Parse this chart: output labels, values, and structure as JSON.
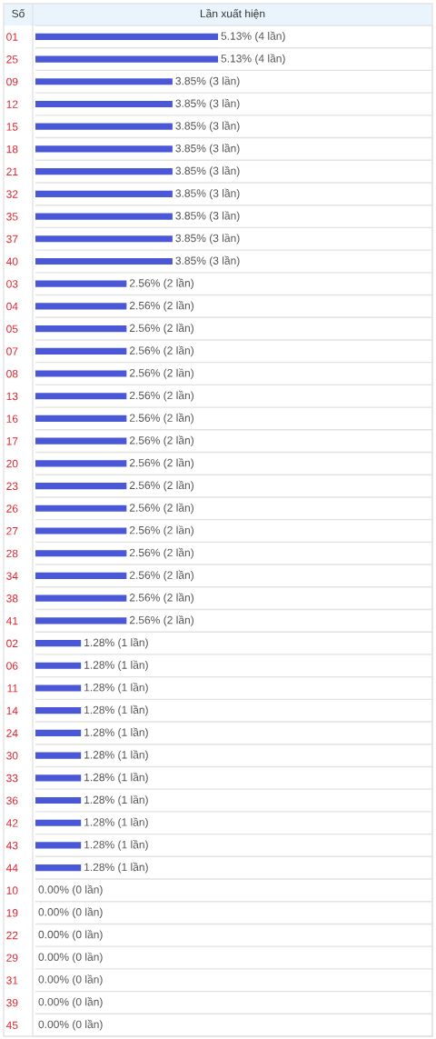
{
  "chart_data": {
    "type": "bar",
    "orientation": "horizontal",
    "xlabel": "Lần xuất hiện",
    "ylabel": "Số",
    "categories": [
      "01",
      "25",
      "09",
      "12",
      "15",
      "18",
      "21",
      "32",
      "35",
      "37",
      "40",
      "03",
      "04",
      "05",
      "07",
      "08",
      "13",
      "16",
      "17",
      "20",
      "23",
      "26",
      "27",
      "28",
      "34",
      "38",
      "41",
      "02",
      "06",
      "11",
      "14",
      "24",
      "30",
      "33",
      "36",
      "42",
      "43",
      "44",
      "10",
      "19",
      "22",
      "29",
      "31",
      "39",
      "45"
    ],
    "values": [
      5.13,
      5.13,
      3.85,
      3.85,
      3.85,
      3.85,
      3.85,
      3.85,
      3.85,
      3.85,
      3.85,
      2.56,
      2.56,
      2.56,
      2.56,
      2.56,
      2.56,
      2.56,
      2.56,
      2.56,
      2.56,
      2.56,
      2.56,
      2.56,
      2.56,
      2.56,
      2.56,
      1.28,
      1.28,
      1.28,
      1.28,
      1.28,
      1.28,
      1.28,
      1.28,
      1.28,
      1.28,
      1.28,
      0.0,
      0.0,
      0.0,
      0.0,
      0.0,
      0.0,
      0.0
    ],
    "value_labels": [
      "5.13% (4 lần)",
      "5.13% (4 lần)",
      "3.85% (3 lần)",
      "3.85% (3 lần)",
      "3.85% (3 lần)",
      "3.85% (3 lần)",
      "3.85% (3 lần)",
      "3.85% (3 lần)",
      "3.85% (3 lần)",
      "3.85% (3 lần)",
      "3.85% (3 lần)",
      "2.56% (2 lần)",
      "2.56% (2 lần)",
      "2.56% (2 lần)",
      "2.56% (2 lần)",
      "2.56% (2 lần)",
      "2.56% (2 lần)",
      "2.56% (2 lần)",
      "2.56% (2 lần)",
      "2.56% (2 lần)",
      "2.56% (2 lần)",
      "2.56% (2 lần)",
      "2.56% (2 lần)",
      "2.56% (2 lần)",
      "2.56% (2 lần)",
      "2.56% (2 lần)",
      "2.56% (2 lần)",
      "1.28% (1 lần)",
      "1.28% (1 lần)",
      "1.28% (1 lần)",
      "1.28% (1 lần)",
      "1.28% (1 lần)",
      "1.28% (1 lần)",
      "1.28% (1 lần)",
      "1.28% (1 lần)",
      "1.28% (1 lần)",
      "1.28% (1 lần)",
      "1.28% (1 lần)",
      "0.00% (0 lần)",
      "0.00% (0 lần)",
      "0.00% (0 lần)",
      "0.00% (0 lần)",
      "0.00% (0 lần)",
      "0.00% (0 lần)",
      "0.00% (0 lần)"
    ],
    "color": "#4a57d6",
    "xlim": [
      0,
      11.15
    ],
    "grid": "y",
    "tick_labels": "y"
  }
}
